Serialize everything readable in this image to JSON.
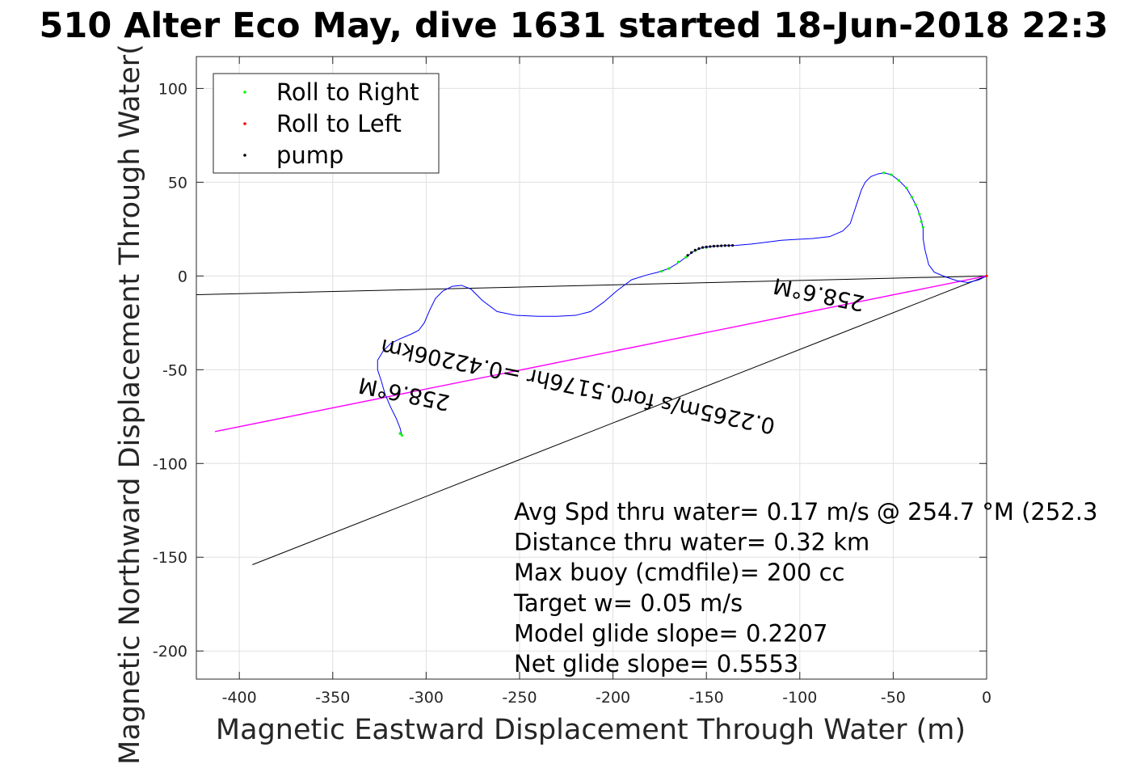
{
  "chart_data": {
    "type": "line",
    "title": "510 Alter Eco May, dive 1631 started 18-Jun-2018 22:3",
    "xlabel": "Magnetic Eastward Displacement Through Water (m)",
    "ylabel": "Magnetic Northward Displacement Through Water(",
    "xlim": [
      -423,
      0
    ],
    "ylim": [
      -215,
      117
    ],
    "xticks": [
      -400,
      -350,
      -300,
      -250,
      -200,
      -150,
      -100,
      -50,
      0
    ],
    "yticks": [
      100,
      50,
      0,
      -50,
      -100,
      -150,
      -200
    ],
    "xtick_labels": [
      "-400",
      "-350",
      "-300",
      "-250",
      "-200",
      "-150",
      "-100",
      "-50",
      "0"
    ],
    "ytick_labels": [
      "100",
      "50",
      "0",
      "-50",
      "-100",
      "-150",
      "-200"
    ],
    "grid": true,
    "legend": {
      "placement": "top-left",
      "entries": [
        {
          "label": "Roll to Right",
          "color": "#00ff00"
        },
        {
          "label": "Roll to Left",
          "color": "#ff0000"
        },
        {
          "label": "pump",
          "color": "#000000"
        }
      ]
    },
    "track": {
      "color": "#0000ff",
      "points": [
        [
          0,
          0
        ],
        [
          -4,
          -2
        ],
        [
          -10,
          -3.5
        ],
        [
          -16,
          -2.5
        ],
        [
          -22,
          -0.5
        ],
        [
          -28,
          2
        ],
        [
          -31,
          6
        ],
        [
          -32,
          10
        ],
        [
          -33,
          14
        ],
        [
          -34,
          20
        ],
        [
          -34,
          25
        ],
        [
          -35,
          30
        ],
        [
          -37,
          36
        ],
        [
          -40,
          42
        ],
        [
          -43,
          47
        ],
        [
          -47,
          51
        ],
        [
          -51,
          54
        ],
        [
          -55,
          55
        ],
        [
          -58,
          54.5
        ],
        [
          -62,
          53
        ],
        [
          -65,
          50
        ],
        [
          -67,
          46
        ],
        [
          -69,
          40
        ],
        [
          -71,
          34
        ],
        [
          -73,
          28
        ],
        [
          -77,
          24
        ],
        [
          -84,
          21
        ],
        [
          -93,
          20
        ],
        [
          -102,
          19.5
        ],
        [
          -110,
          19
        ],
        [
          -118,
          18
        ],
        [
          -126,
          17
        ],
        [
          -134,
          16.3
        ],
        [
          -140,
          16.2
        ],
        [
          -146,
          15.9
        ],
        [
          -152,
          15.2
        ],
        [
          -157,
          13
        ],
        [
          -161,
          10
        ],
        [
          -165,
          7
        ],
        [
          -170,
          4
        ],
        [
          -176,
          2
        ],
        [
          -182,
          0.5
        ],
        [
          -190,
          -2
        ],
        [
          -198,
          -8
        ],
        [
          -205,
          -14
        ],
        [
          -212,
          -19
        ],
        [
          -220,
          -21
        ],
        [
          -230,
          -21.5
        ],
        [
          -240,
          -21.5
        ],
        [
          -252,
          -21
        ],
        [
          -262,
          -19
        ],
        [
          -270,
          -13
        ],
        [
          -276,
          -7
        ],
        [
          -281,
          -5
        ],
        [
          -286,
          -5.5
        ],
        [
          -291,
          -8
        ],
        [
          -295,
          -12
        ],
        [
          -298,
          -18
        ],
        [
          -301,
          -25
        ],
        [
          -304,
          -29
        ],
        [
          -308,
          -31
        ],
        [
          -314,
          -33.5
        ],
        [
          -319,
          -36
        ],
        [
          -323,
          -40
        ],
        [
          -326,
          -45
        ],
        [
          -326,
          -50
        ],
        [
          -324,
          -56
        ],
        [
          -322,
          -63
        ],
        [
          -319,
          -70
        ],
        [
          -316,
          -76
        ],
        [
          -314,
          -81
        ],
        [
          -313,
          -85
        ]
      ]
    },
    "roll_right_points": [
      [
        -313,
        -85
      ],
      [
        -314,
        -84
      ],
      [
        -150,
        15.2
      ],
      [
        -156,
        13.5
      ],
      [
        -161,
        10
      ],
      [
        -165,
        7.5
      ],
      [
        -170,
        4
      ],
      [
        -174,
        2.5
      ],
      [
        -55,
        55
      ],
      [
        -51,
        54
      ],
      [
        -47,
        51
      ],
      [
        -43,
        47
      ],
      [
        -40,
        42
      ],
      [
        -38,
        38
      ],
      [
        -36,
        33
      ],
      [
        -35,
        29
      ],
      [
        -34,
        26
      ]
    ],
    "roll_left_points": [
      [
        0,
        0
      ]
    ],
    "pump_points": [
      [
        -136,
        16.3
      ],
      [
        -138,
        16.2
      ],
      [
        -140,
        16.2
      ],
      [
        -142,
        16.1
      ],
      [
        -144,
        16
      ],
      [
        -146,
        15.9
      ],
      [
        -148,
        15.7
      ],
      [
        -150,
        15.5
      ],
      [
        -152,
        15.2
      ],
      [
        -154,
        14.6
      ],
      [
        -156,
        13.8
      ],
      [
        -158,
        12.5
      ],
      [
        -160,
        11
      ]
    ],
    "lines": [
      {
        "name": "heading-line",
        "color": "#000000",
        "from": [
          -423,
          -10
        ],
        "to": [
          0,
          0
        ]
      },
      {
        "name": "current-line",
        "color": "#000000",
        "from": [
          -393,
          -154
        ],
        "to": [
          0,
          0
        ]
      },
      {
        "name": "glide-line",
        "color": "#ff00ff",
        "from": [
          -413,
          -83
        ],
        "to": [
          0,
          0
        ]
      }
    ],
    "rotated_labels": [
      {
        "name": "heading-label-left",
        "text": "258.6°M",
        "anchor": [
          -311,
          -59
        ],
        "angle": 191.5
      },
      {
        "name": "heading-label-right",
        "text": "258.6°M",
        "anchor": [
          -89,
          -6
        ],
        "angle": 191.5
      },
      {
        "name": "speed-label",
        "text": "0.2265m/s for0.5176hr =0.42206km",
        "anchor": [
          -218,
          -55
        ],
        "angle": 191.5
      }
    ],
    "annotations": [
      "Avg Spd thru water=  0.17 m/s @ 254.7 °M (252.3",
      "Distance thru water=  0.32 km",
      "Max buoy (cmdfile)= 200 cc",
      "Target w= 0.05 m/s",
      "Model glide slope= 0.2207",
      "Net glide slope= 0.5553"
    ]
  }
}
